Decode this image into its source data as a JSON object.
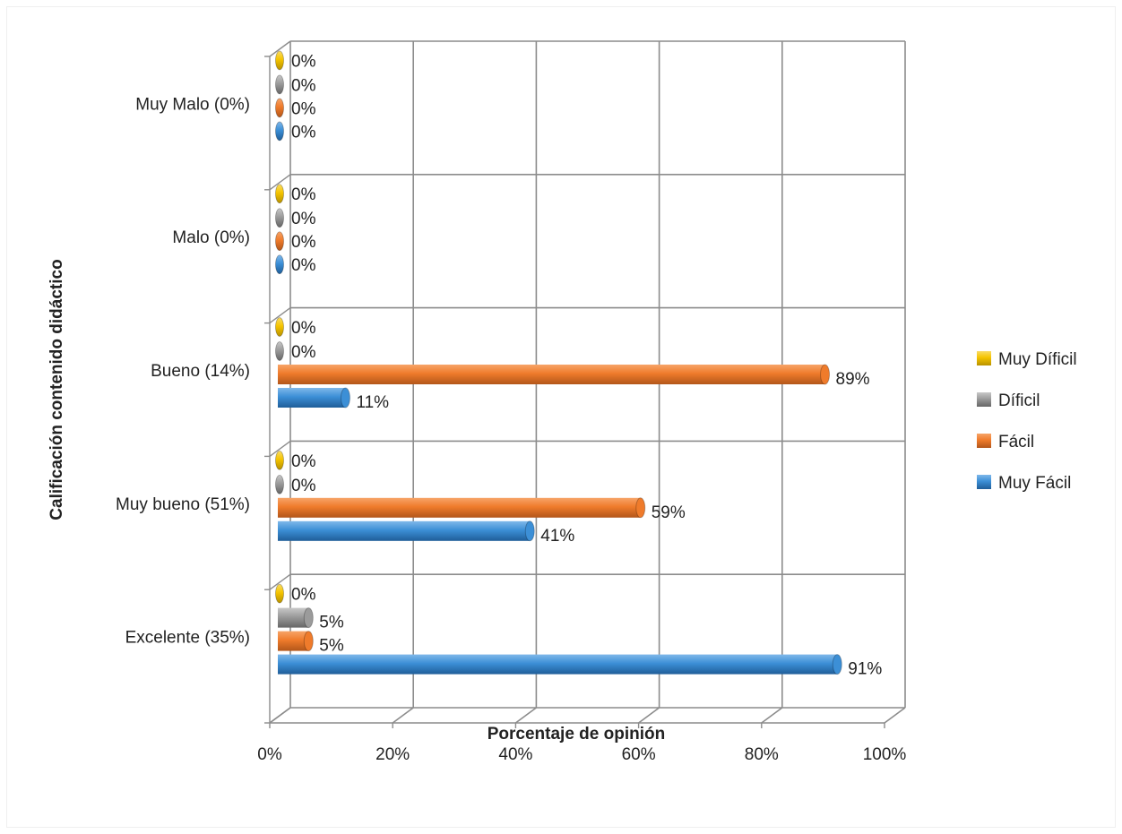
{
  "chart_data": {
    "type": "bar",
    "orientation": "horizontal",
    "three_d": true,
    "title": "",
    "xlabel": "Porcentaje de opinión",
    "ylabel": "Calificación contenido didáctico",
    "xlim": [
      0,
      100
    ],
    "x_ticks": [
      "0%",
      "20%",
      "40%",
      "60%",
      "80%",
      "100%"
    ],
    "grid": true,
    "legend_position": "right",
    "categories": [
      "Excelente (35%)",
      "Muy bueno (51%)",
      "Bueno (14%)",
      "Malo (0%)",
      "Muy Malo (0%)"
    ],
    "series": [
      {
        "name": "Muy Fácil",
        "color": "#3c8fd6",
        "values": [
          91,
          41,
          11,
          0,
          0
        ],
        "labels": [
          "91%",
          "41%",
          "11%",
          "0%",
          "0%"
        ]
      },
      {
        "name": "Fácil",
        "color": "#ef7b2b",
        "values": [
          5,
          59,
          89,
          0,
          0
        ],
        "labels": [
          "5%",
          "59%",
          "89%",
          "0%",
          "0%"
        ]
      },
      {
        "name": "Díficil",
        "color": "#9b9b9b",
        "values": [
          5,
          0,
          0,
          0,
          0
        ],
        "labels": [
          "5%",
          "0%",
          "0%",
          "0%",
          "0%"
        ]
      },
      {
        "name": "Muy Díficil",
        "color": "#f5c400",
        "values": [
          0,
          0,
          0,
          0,
          0
        ],
        "labels": [
          "0%",
          "0%",
          "0%",
          "0%",
          "0%"
        ]
      }
    ]
  }
}
